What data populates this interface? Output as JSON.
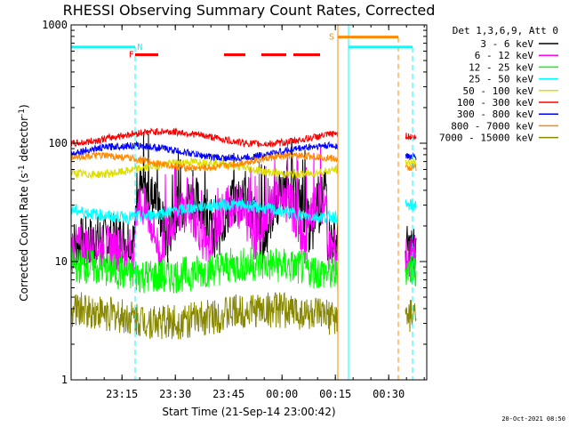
{
  "chart_data": {
    "type": "line",
    "title": "RHESSI Observing Summary Count Rates, Corrected",
    "xlabel": "Start Time (21-Sep-14 23:00:42)",
    "ylabel_main": "Corrected Count Rate (s",
    "ylabel_sup1": "-1",
    "ylabel_mid": " detector",
    "ylabel_sup2": "-1",
    "ylabel_end": ")",
    "yscale": "log",
    "ylim": [
      1,
      1000
    ],
    "xlim_minutes": [
      0,
      100
    ],
    "x_ticks": [
      {
        "minute": 14.3,
        "label": "23:15"
      },
      {
        "minute": 29.3,
        "label": "23:30"
      },
      {
        "minute": 44.3,
        "label": "23:45"
      },
      {
        "minute": 59.3,
        "label": "00:00"
      },
      {
        "minute": 74.3,
        "label": "00:15"
      },
      {
        "minute": 89.3,
        "label": "00:30"
      }
    ],
    "y_ticks": [
      {
        "value": 1,
        "label": "1"
      },
      {
        "value": 10,
        "label": "10"
      },
      {
        "value": 100,
        "label": "100"
      },
      {
        "value": 1000,
        "label": "1000"
      }
    ],
    "legend_header": "Det 1,3,6,9, Att 0",
    "series": [
      {
        "name": "3 - 6 keV",
        "color": "#000000",
        "level": 14,
        "noise": 0.5,
        "bursty": true
      },
      {
        "name": "6 - 12 keV",
        "color": "#ff00ff",
        "level": 12,
        "noise": 0.45,
        "bursty": true
      },
      {
        "name": "12 - 25 keV",
        "color": "#00ff00",
        "level": 8.5,
        "noise": 0.35
      },
      {
        "name": "25 - 50 keV",
        "color": "#00ffff",
        "level": 27,
        "noise": 0.12
      },
      {
        "name": "50 - 100 keV",
        "color": "#dddd00",
        "level": 62,
        "noise": 0.08
      },
      {
        "name": "100 - 300 keV",
        "color": "#ff0000",
        "level": 112,
        "noise": 0.07
      },
      {
        "name": "300 - 800 keV",
        "color": "#0000ff",
        "level": 85,
        "noise": 0.07
      },
      {
        "name": "800 - 7000 keV",
        "color": "#ff8800",
        "level": 70,
        "noise": 0.07
      },
      {
        "name": "7000 - 15000 keV",
        "color": "#888800",
        "level": 3.5,
        "noise": 0.35
      }
    ],
    "segments": [
      [
        0,
        75
      ],
      [
        94,
        97
      ]
    ],
    "flags": [
      {
        "label": "N",
        "color": "#00ffff",
        "level": 650,
        "start": 0,
        "end": 18,
        "label_minute": 18.6,
        "dashed_line_minute": 18
      },
      {
        "label": "F",
        "color": "#ff0000",
        "level": 560,
        "start": 18,
        "end": 24.5,
        "label_minute": 16.2
      },
      {
        "label": "",
        "color": "#ff0000",
        "level": 560,
        "start": 43,
        "end": 49
      },
      {
        "label": "",
        "color": "#ff0000",
        "level": 560,
        "start": 53.5,
        "end": 60.5
      },
      {
        "label": "",
        "color": "#ff0000",
        "level": 560,
        "start": 62.5,
        "end": 70
      },
      {
        "label": "S",
        "color": "#ff8800",
        "level": 790,
        "start": 75,
        "end": 92,
        "label_minute": 72.5,
        "dashed_line_minute": 92
      },
      {
        "label": "",
        "color": "#00ffff",
        "level": 650,
        "start": 78,
        "end": 96,
        "dashed_line_minute": 96
      }
    ],
    "vertical_lines": [
      {
        "minute": 75,
        "color": "#ff8800"
      },
      {
        "minute": 78,
        "color": "#00ffff"
      }
    ],
    "timestamp": "20-Oct-2021 08:50"
  }
}
